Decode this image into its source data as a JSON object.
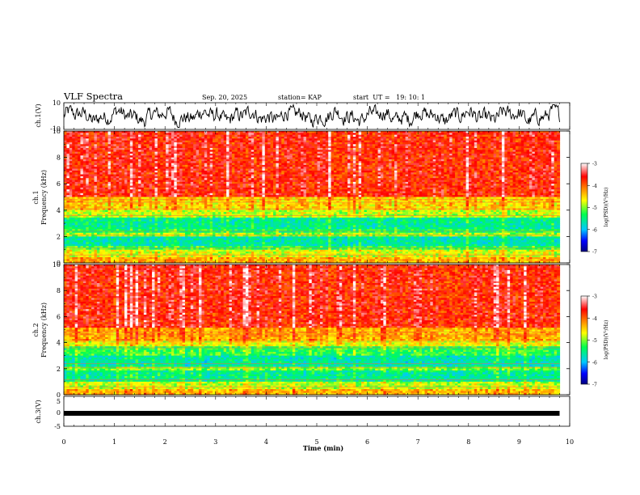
{
  "header": {
    "title": "VLF Spectra",
    "date": "Sep. 20, 2025",
    "station": "station= KAP",
    "start": "start  UT =   19: 10: 1"
  },
  "chart_data": [
    {
      "type": "line",
      "name": "ch1-waveform",
      "ylabel": "ch.1(V)",
      "ylim": [
        -10,
        10
      ],
      "ytick_labels": [
        "10",
        "-10"
      ],
      "xlim": [
        0,
        9.8
      ],
      "description_note": "noisy waveform fluctuating between roughly -8 and 8 V"
    },
    {
      "type": "heatmap",
      "name": "ch1-spectrogram",
      "ylabel": "ch.1\nFrequency (kHz)",
      "ylabel_lines": [
        "ch.1",
        "Frequency (kHz)"
      ],
      "ylim": [
        0,
        10
      ],
      "yticks": [
        "0",
        "2",
        "4",
        "6",
        "8",
        "10"
      ],
      "xlim": [
        0,
        9.8
      ],
      "bands": [
        {
          "from": 0.0,
          "to": 0.4,
          "level": -4.3
        },
        {
          "from": 0.4,
          "to": 1.0,
          "level": -4.7
        },
        {
          "from": 1.0,
          "to": 1.3,
          "level": -5.2
        },
        {
          "from": 1.3,
          "to": 2.0,
          "level": -5.6
        },
        {
          "from": 2.0,
          "to": 2.3,
          "level": -4.9
        },
        {
          "from": 2.3,
          "to": 2.6,
          "level": -5.3
        },
        {
          "from": 2.6,
          "to": 3.4,
          "level": -5.5
        },
        {
          "from": 3.4,
          "to": 4.0,
          "level": -4.8
        },
        {
          "from": 4.0,
          "to": 5.0,
          "level": -4.4
        },
        {
          "from": 5.0,
          "to": 10.0,
          "level": -3.6
        }
      ]
    },
    {
      "type": "heatmap",
      "name": "ch2-spectrogram",
      "ylabel": "ch.2\nFrequency (kHz)",
      "ylabel_lines": [
        "ch.2",
        "Frequency (kHz)"
      ],
      "ylim": [
        0,
        10
      ],
      "yticks": [
        "0",
        "2",
        "4",
        "6",
        "8",
        "10"
      ],
      "xlim": [
        0,
        9.8
      ],
      "bands": [
        {
          "from": 0.0,
          "to": 0.4,
          "level": -4.3
        },
        {
          "from": 0.4,
          "to": 1.0,
          "level": -4.8
        },
        {
          "from": 1.0,
          "to": 1.8,
          "level": -5.5
        },
        {
          "from": 1.8,
          "to": 2.1,
          "level": -5.0
        },
        {
          "from": 2.1,
          "to": 3.0,
          "level": -5.6
        },
        {
          "from": 3.0,
          "to": 3.7,
          "level": -5.2
        },
        {
          "from": 3.7,
          "to": 4.2,
          "level": -4.6
        },
        {
          "from": 4.2,
          "to": 5.2,
          "level": -4.2
        },
        {
          "from": 5.2,
          "to": 10.0,
          "level": -3.6
        }
      ]
    },
    {
      "type": "line",
      "name": "ch3-waveform",
      "ylabel": "ch.3(V)",
      "ylim": [
        -5,
        5
      ],
      "ytick_labels": [
        "5",
        "0",
        "-5"
      ],
      "xlim": [
        0,
        9.8
      ],
      "xlabel": "Time (min)",
      "xlim_axis": [
        0,
        10
      ],
      "xticks": [
        "0",
        "1",
        "2",
        "3",
        "4",
        "5",
        "6",
        "7",
        "8",
        "9",
        "10"
      ],
      "value": 0.0,
      "description_note": "flat thick line near 0 V"
    }
  ],
  "colorbars": [
    {
      "name": "ch1-colorbar",
      "label": "log(PSD)(V²/Hz)",
      "range": [
        -7,
        -3
      ],
      "ticks": [
        "-3",
        "-4",
        "-5",
        "-6",
        "-7"
      ]
    },
    {
      "name": "ch2-colorbar",
      "label": "log(PSD)(V²/Hz)",
      "range": [
        -7,
        -3
      ],
      "ticks": [
        "-3",
        "-4",
        "-5",
        "-6",
        "-7"
      ]
    }
  ],
  "colors": {
    "line": "#000000",
    "axis": "#000000"
  }
}
